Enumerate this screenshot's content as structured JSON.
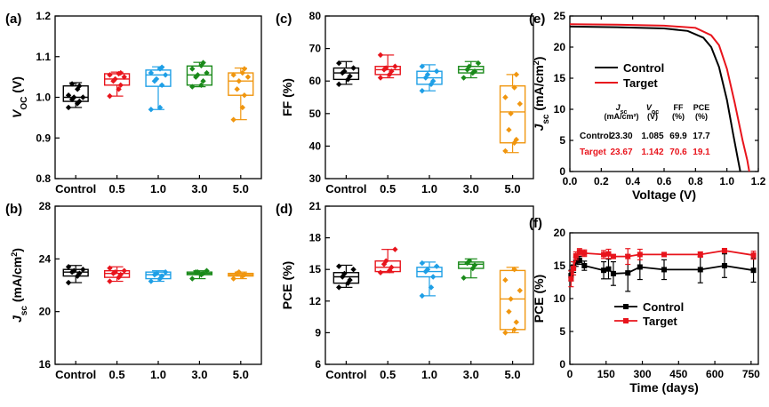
{
  "chart_data": [
    {
      "id": "a",
      "panel_label": "(a)",
      "type": "box",
      "ylabel": "V_OC (V)",
      "ylim": [
        0.8,
        1.2
      ],
      "yticks": [
        0.8,
        0.9,
        1.0,
        1.1,
        1.2
      ],
      "ytick_labels": [
        "0.8",
        "0.9",
        "1.0",
        "1.1",
        "1.2"
      ],
      "categories": [
        "Control",
        "0.5",
        "1.0",
        "3.0",
        "5.0"
      ],
      "colors": [
        "#000000",
        "#e8141c",
        "#1e9fe6",
        "#1a8a1a",
        "#f0960f"
      ],
      "boxes": [
        {
          "min": 0.975,
          "q1": 0.99,
          "median": 1.0,
          "q3": 1.028,
          "max": 1.036,
          "points": [
            0.975,
            0.985,
            0.99,
            0.995,
            1.0,
            1.0,
            1.005,
            1.02,
            1.028,
            1.033
          ]
        },
        {
          "min": 1.003,
          "q1": 1.03,
          "median": 1.045,
          "q3": 1.058,
          "max": 1.062,
          "points": [
            1.003,
            1.02,
            1.03,
            1.04,
            1.045,
            1.05,
            1.055,
            1.058,
            1.06
          ]
        },
        {
          "min": 0.97,
          "q1": 1.027,
          "median": 1.055,
          "q3": 1.067,
          "max": 1.075,
          "points": [
            0.97,
            0.975,
            1.03,
            1.04,
            1.045,
            1.055,
            1.06,
            1.07,
            1.074
          ]
        },
        {
          "min": 1.026,
          "q1": 1.03,
          "median": 1.055,
          "q3": 1.077,
          "max": 1.086,
          "points": [
            1.026,
            1.03,
            1.04,
            1.05,
            1.055,
            1.06,
            1.07,
            1.078,
            1.085
          ]
        },
        {
          "min": 0.945,
          "q1": 1.005,
          "median": 1.04,
          "q3": 1.06,
          "max": 1.072,
          "points": [
            0.945,
            0.975,
            1.005,
            1.02,
            1.04,
            1.05,
            1.055,
            1.06,
            1.07
          ]
        }
      ]
    },
    {
      "id": "b",
      "panel_label": "(b)",
      "type": "box",
      "ylabel": "J_sc (mA/cm2)",
      "ylim": [
        16,
        28
      ],
      "yticks": [
        16,
        20,
        24,
        28
      ],
      "ytick_labels": [
        "16",
        "20",
        "24",
        "28"
      ],
      "categories": [
        "Control",
        "0.5",
        "1.0",
        "3.0",
        "5.0"
      ],
      "colors": [
        "#000000",
        "#e8141c",
        "#1e9fe6",
        "#1a8a1a",
        "#f0960f"
      ],
      "boxes": [
        {
          "min": 22.2,
          "q1": 22.7,
          "median": 23.0,
          "q3": 23.2,
          "max": 23.5,
          "points": [
            22.2,
            22.7,
            22.9,
            23.0,
            23.1,
            23.2,
            23.4
          ]
        },
        {
          "min": 22.3,
          "q1": 22.6,
          "median": 22.9,
          "q3": 23.1,
          "max": 23.4,
          "points": [
            22.3,
            22.6,
            22.8,
            22.9,
            23.0,
            23.1,
            23.3
          ]
        },
        {
          "min": 22.3,
          "q1": 22.5,
          "median": 22.8,
          "q3": 23.0,
          "max": 23.1,
          "points": [
            22.3,
            22.5,
            22.7,
            22.8,
            22.9,
            23.0
          ]
        },
        {
          "min": 22.5,
          "q1": 22.8,
          "median": 22.9,
          "q3": 23.0,
          "max": 23.1,
          "points": [
            22.5,
            22.8,
            22.9,
            23.0,
            23.0,
            23.1
          ]
        },
        {
          "min": 22.5,
          "q1": 22.7,
          "median": 22.8,
          "q3": 22.9,
          "max": 23.0,
          "points": [
            22.5,
            22.7,
            22.8,
            22.9,
            23.0
          ]
        }
      ]
    },
    {
      "id": "c",
      "panel_label": "(c)",
      "type": "box",
      "ylabel": "FF (%)",
      "ylim": [
        30,
        80
      ],
      "yticks": [
        30,
        40,
        50,
        60,
        70,
        80
      ],
      "ytick_labels": [
        "30",
        "40",
        "50",
        "60",
        "70",
        "80"
      ],
      "categories": [
        "Control",
        "0.5",
        "1.0",
        "3.0",
        "5.0"
      ],
      "colors": [
        "#000000",
        "#e8141c",
        "#1e9fe6",
        "#1a8a1a",
        "#f0960f"
      ],
      "boxes": [
        {
          "min": 59,
          "q1": 60.5,
          "median": 62.5,
          "q3": 64,
          "max": 66,
          "points": [
            59,
            60.5,
            61.5,
            62.5,
            63,
            64,
            65.5
          ]
        },
        {
          "min": 61,
          "q1": 62,
          "median": 63.5,
          "q3": 64.5,
          "max": 68,
          "points": [
            61,
            62,
            63,
            63.5,
            64,
            64.5,
            68
          ]
        },
        {
          "min": 57,
          "q1": 59,
          "median": 61,
          "q3": 63,
          "max": 65,
          "points": [
            57,
            59,
            60,
            61,
            62,
            63,
            64.5
          ]
        },
        {
          "min": 61,
          "q1": 62.5,
          "median": 63.5,
          "q3": 64.5,
          "max": 66,
          "points": [
            61,
            62.5,
            63,
            63.5,
            64.5,
            65.5
          ]
        },
        {
          "min": 38,
          "q1": 41,
          "median": 50.5,
          "q3": 58.5,
          "max": 62,
          "points": [
            38.5,
            41,
            42,
            45,
            50,
            53,
            55,
            58,
            62
          ]
        }
      ]
    },
    {
      "id": "d",
      "panel_label": "(d)",
      "type": "box",
      "ylabel": "PCE (%)",
      "ylim": [
        6,
        21
      ],
      "yticks": [
        6,
        9,
        12,
        15,
        18,
        21
      ],
      "ytick_labels": [
        "6",
        "9",
        "12",
        "15",
        "18",
        "21"
      ],
      "categories": [
        "Control",
        "0.5",
        "1.0",
        "3.0",
        "5.0"
      ],
      "colors": [
        "#000000",
        "#e8141c",
        "#1e9fe6",
        "#1a8a1a",
        "#f0960f"
      ],
      "boxes": [
        {
          "min": 13.3,
          "q1": 13.7,
          "median": 14.3,
          "q3": 14.7,
          "max": 15.4,
          "points": [
            13.3,
            13.7,
            14.0,
            14.3,
            14.6,
            15.0,
            15.3
          ]
        },
        {
          "min": 14.7,
          "q1": 14.8,
          "median": 15.2,
          "q3": 15.8,
          "max": 16.9,
          "points": [
            14.7,
            14.9,
            15.2,
            15.5,
            15.8,
            16.9
          ]
        },
        {
          "min": 12.5,
          "q1": 14.3,
          "median": 14.8,
          "q3": 15.2,
          "max": 15.7,
          "points": [
            12.5,
            13.3,
            14.3,
            14.8,
            15.0,
            15.3,
            15.6
          ]
        },
        {
          "min": 14.2,
          "q1": 15.1,
          "median": 15.5,
          "q3": 15.7,
          "max": 16.0,
          "points": [
            14.2,
            15.1,
            15.4,
            15.6,
            15.8
          ]
        },
        {
          "min": 9.0,
          "q1": 9.3,
          "median": 12.2,
          "q3": 14.9,
          "max": 15.2,
          "points": [
            9.0,
            9.3,
            10.0,
            11.0,
            12.2,
            13.0,
            14.0,
            15.0
          ]
        }
      ]
    },
    {
      "id": "e",
      "panel_label": "(e)",
      "type": "line",
      "xlabel": "Voltage (V)",
      "ylabel": "J_sc (mA/cm2)",
      "xlim": [
        0.0,
        1.2
      ],
      "ylim": [
        0,
        25
      ],
      "xticks": [
        0.0,
        0.2,
        0.4,
        0.6,
        0.8,
        1.0,
        1.2
      ],
      "xtick_labels": [
        "0.0",
        "0.2",
        "0.4",
        "0.6",
        "0.8",
        "1.0",
        "1.2"
      ],
      "yticks": [
        0,
        5,
        10,
        15,
        20,
        25
      ],
      "ytick_labels": [
        "0",
        "5",
        "10",
        "15",
        "20",
        "25"
      ],
      "legend_position": "upper-middle",
      "series": [
        {
          "name": "Control",
          "color": "#000000",
          "x": [
            0.0,
            0.3,
            0.6,
            0.75,
            0.85,
            0.9,
            0.95,
            1.0,
            1.04,
            1.07,
            1.085
          ],
          "y": [
            23.3,
            23.2,
            23.0,
            22.6,
            21.5,
            20.0,
            16.8,
            11.5,
            6.0,
            2.0,
            0.0
          ]
        },
        {
          "name": "Target",
          "color": "#e8141c",
          "x": [
            0.0,
            0.3,
            0.6,
            0.8,
            0.9,
            0.95,
            1.0,
            1.05,
            1.1,
            1.13,
            1.142
          ],
          "y": [
            23.67,
            23.6,
            23.45,
            23.1,
            21.9,
            20.3,
            16.5,
            11.0,
            5.0,
            1.8,
            0.0
          ]
        }
      ],
      "table": {
        "header": [
          {
            "main": "J",
            "sub": "sc",
            "unit": "(mA/cm²)"
          },
          {
            "main": "V",
            "sub": "oc",
            "unit": "(V)"
          },
          {
            "main": "FF",
            "sub": "",
            "unit": "(%)"
          },
          {
            "main": "PCE",
            "sub": "",
            "unit": "(%)"
          }
        ],
        "rows": [
          {
            "label": "Control",
            "color": "#000000",
            "values": [
              "23.30",
              "1.085",
              "69.9",
              "17.7"
            ]
          },
          {
            "label": "Target",
            "color": "#e8141c",
            "values": [
              "23.67",
              "1.142",
              "70.6",
              "19.1"
            ]
          }
        ]
      }
    },
    {
      "id": "f",
      "panel_label": "(f)",
      "type": "line",
      "xlabel": "Time (days)",
      "ylabel": "PCE (%)",
      "xlim": [
        0,
        780
      ],
      "ylim": [
        0,
        20
      ],
      "xticks": [
        0,
        150,
        300,
        450,
        600,
        750
      ],
      "xtick_labels": [
        "0",
        "150",
        "300",
        "450",
        "600",
        "750"
      ],
      "yticks": [
        0,
        5,
        10,
        15,
        20
      ],
      "ytick_labels": [
        "0",
        "5",
        "10",
        "15",
        "20"
      ],
      "legend_position": "middle",
      "series": [
        {
          "name": "Control",
          "color": "#000000",
          "x": [
            5,
            15,
            25,
            40,
            60,
            140,
            160,
            180,
            240,
            290,
            390,
            540,
            640,
            760
          ],
          "y": [
            13.5,
            14.8,
            15.6,
            15.8,
            15.0,
            14.3,
            14.5,
            13.8,
            13.9,
            14.8,
            14.4,
            14.4,
            15.0,
            14.3
          ],
          "err": [
            0.8,
            0.8,
            0.7,
            0.6,
            0.7,
            1.3,
            1.5,
            1.8,
            2.8,
            1.9,
            1.5,
            2.0,
            1.8,
            1.8
          ]
        },
        {
          "name": "Target",
          "color": "#e8141c",
          "x": [
            5,
            15,
            25,
            40,
            60,
            140,
            160,
            180,
            240,
            290,
            390,
            540,
            640,
            760
          ],
          "y": [
            13.0,
            14.6,
            16.5,
            17.1,
            16.9,
            16.7,
            16.8,
            16.4,
            16.4,
            16.7,
            16.7,
            16.7,
            17.3,
            16.6
          ],
          "err": [
            1.2,
            1.0,
            0.6,
            0.5,
            0.5,
            0.6,
            0.7,
            0.3,
            1.2,
            0.8,
            0.3,
            0.4,
            0.3,
            0.6
          ]
        }
      ]
    }
  ]
}
